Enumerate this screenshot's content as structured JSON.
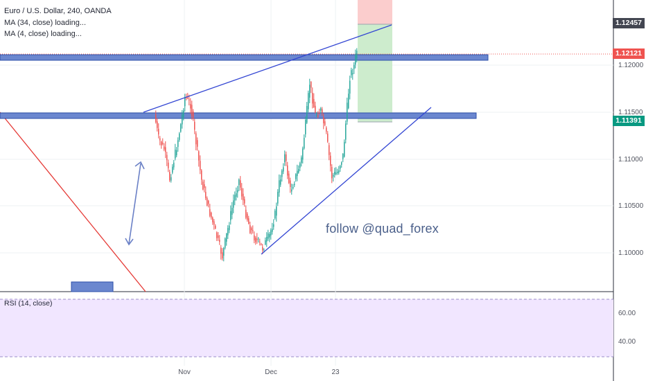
{
  "header": {
    "symbol_line": "Euro / U.S. Dollar, 240, OANDA",
    "ma1": "MA (34, close) loading...",
    "ma2": "MA (4, close) loading..."
  },
  "price_axis": {
    "labels": [
      "1.12000",
      "1.11500",
      "1.11000",
      "1.10500",
      "1.10000"
    ],
    "tags": {
      "top": {
        "text": "1.12457",
        "color": "#434651"
      },
      "current": {
        "text": "1.12121",
        "color": "#ef5350"
      },
      "target": {
        "text": "1.11391",
        "color": "#089981"
      }
    }
  },
  "time_axis": {
    "labels": [
      "Nov",
      "Dec",
      "23"
    ]
  },
  "rsi": {
    "title": "RSI (14, close)",
    "labels": [
      "60.00",
      "40.00"
    ],
    "fill_color": "#ecdcff"
  },
  "watermark": "follow @quad_forex",
  "colors": {
    "bull": "#26a69a",
    "bear": "#ef5350",
    "zone": "#5a78c2",
    "trend": "#3346d3",
    "arrow": "#6a80c6",
    "risk": "#fbcdcd",
    "reward": "#cdeccd"
  }
}
